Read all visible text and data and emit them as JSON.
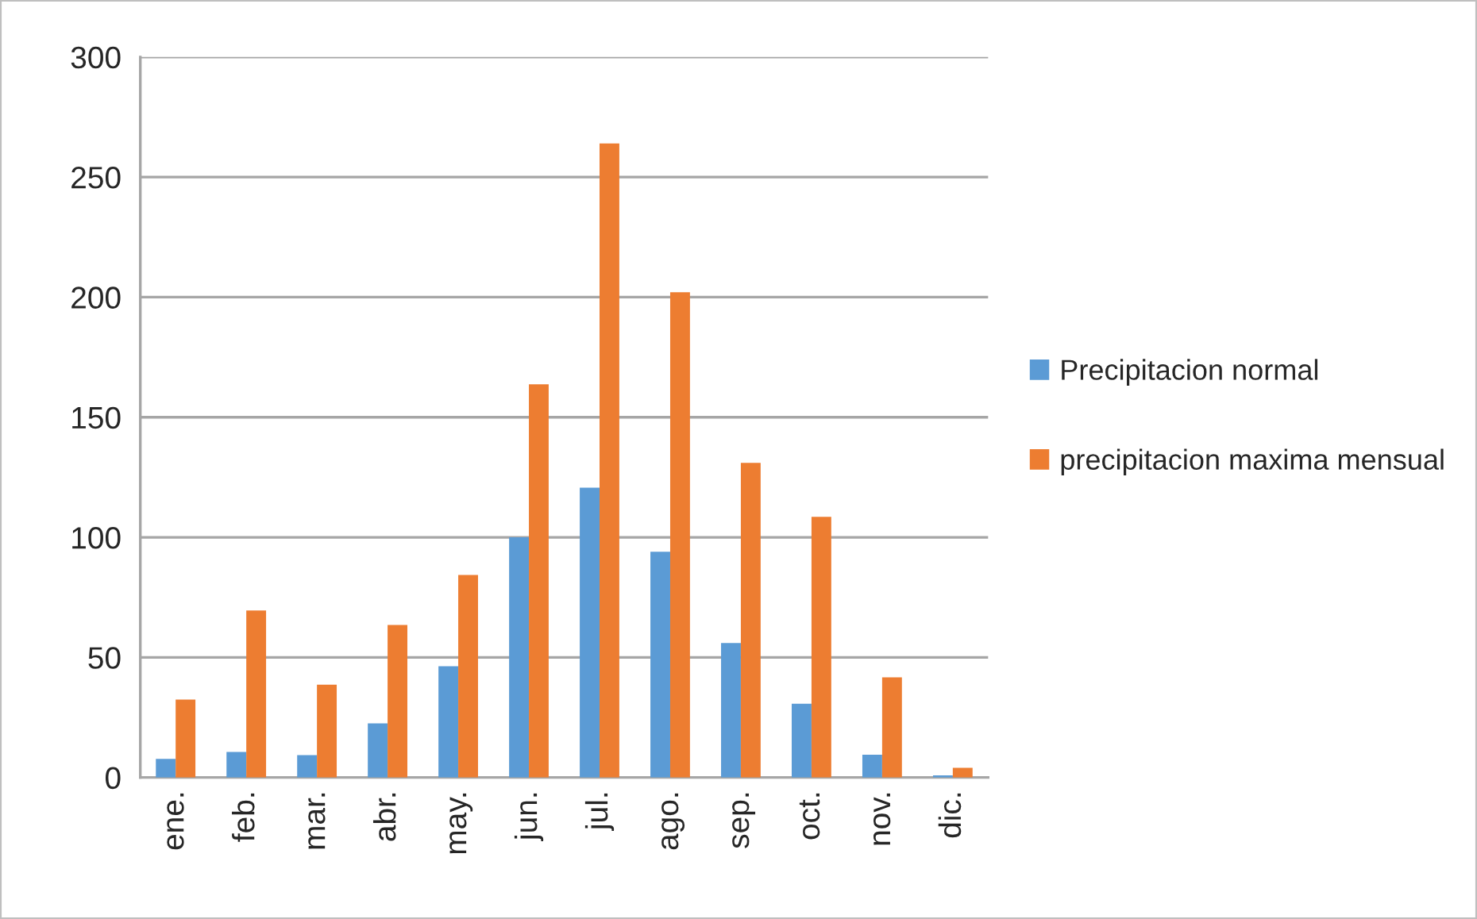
{
  "chart_data": {
    "type": "bar",
    "categories": [
      "ene.",
      "feb.",
      "mar.",
      "abr.",
      "may.",
      "jun.",
      "jul.",
      "ago.",
      "sep.",
      "oct.",
      "nov.",
      "dic."
    ],
    "series": [
      {
        "name": "Precipitacion normal",
        "color": "#5b9bd5",
        "values": [
          7.7,
          10.6,
          9.3,
          22.5,
          46.3,
          100,
          120.7,
          94,
          56,
          30.7,
          9.5,
          0.9
        ]
      },
      {
        "name": "precipitacion maxima mensual",
        "color": "#ed7d31",
        "values": [
          32.4,
          69.5,
          38.6,
          63.5,
          84.3,
          163.7,
          264,
          202,
          131,
          108.5,
          41.7,
          4
        ]
      }
    ],
    "ylim": [
      0,
      300
    ],
    "yticks": [
      0,
      50,
      100,
      150,
      200,
      250,
      300
    ],
    "grid": "y",
    "legend": "right"
  }
}
